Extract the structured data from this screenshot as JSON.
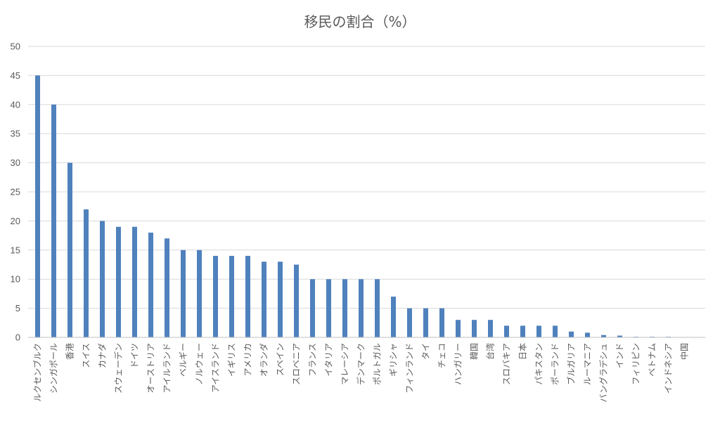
{
  "chart_data": {
    "type": "bar",
    "title": "移民の割合（%）",
    "xlabel": "",
    "ylabel": "",
    "ylim": [
      0,
      50
    ],
    "yticks": [
      0,
      5,
      10,
      15,
      20,
      25,
      30,
      35,
      40,
      45,
      50
    ],
    "grid": true,
    "legend": "none",
    "bar_color": "#4f81bd",
    "categories": [
      "ルクセンブルク",
      "シンガポール",
      "香港",
      "スイス",
      "カナダ",
      "スウェーデン",
      "ドイツ",
      "オーストリア",
      "アイルランド",
      "ベルギー",
      "ノルウェー",
      "アイスランド",
      "イギリス",
      "アメリカ",
      "オランダ",
      "スペイン",
      "スロベニア",
      "フランス",
      "イタリア",
      "マレーシア",
      "デンマーク",
      "ポルトガル",
      "ギリシャ",
      "フィンランド",
      "タイ",
      "チェコ",
      "ハンガリー",
      "韓国",
      "台湾",
      "スロバキア",
      "日本",
      "パキスタン",
      "ポーランド",
      "ブルガリア",
      "ルーマニア",
      "バングラデシュ",
      "インド",
      "フィリピン",
      "ベトナム",
      "インドネシア",
      "中国"
    ],
    "values": [
      45,
      40,
      30,
      22,
      20,
      19,
      19,
      18,
      17,
      15,
      15,
      14,
      14,
      14,
      13,
      13,
      12.5,
      10,
      10,
      10,
      10,
      10,
      7,
      5,
      5,
      5,
      3,
      3,
      3,
      2,
      2,
      2,
      2,
      1,
      0.8,
      0.4,
      0.3,
      0.1,
      0.1,
      0.1,
      0.05
    ]
  }
}
